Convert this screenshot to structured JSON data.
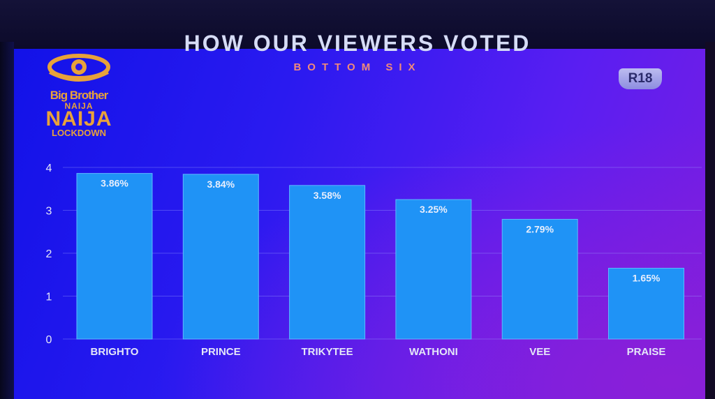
{
  "screen": {
    "badge": "R18",
    "logo": {
      "line1": "Big Brother",
      "line2": "NAIJA",
      "line3": "NAIJA",
      "line4": "LOCKDOWN",
      "color": "#e8a23a"
    }
  },
  "chart_data": {
    "type": "bar",
    "title": "HOW OUR VIEWERS VOTED",
    "subtitle": "BOTTOM SIX",
    "categories": [
      "BRIGHTO",
      "PRINCE",
      "TRIKYTEE",
      "WATHONI",
      "VEE",
      "PRAISE"
    ],
    "values": [
      3.86,
      3.84,
      3.58,
      3.25,
      2.79,
      1.65
    ],
    "data_labels": [
      "3.86%",
      "3.84%",
      "3.58%",
      "3.25%",
      "2.79%",
      "1.65%"
    ],
    "yticks": [
      "0",
      "1",
      "2",
      "3",
      "4"
    ],
    "ylim": [
      0,
      4
    ],
    "grid": true,
    "bar_color": "#1f93f6"
  }
}
